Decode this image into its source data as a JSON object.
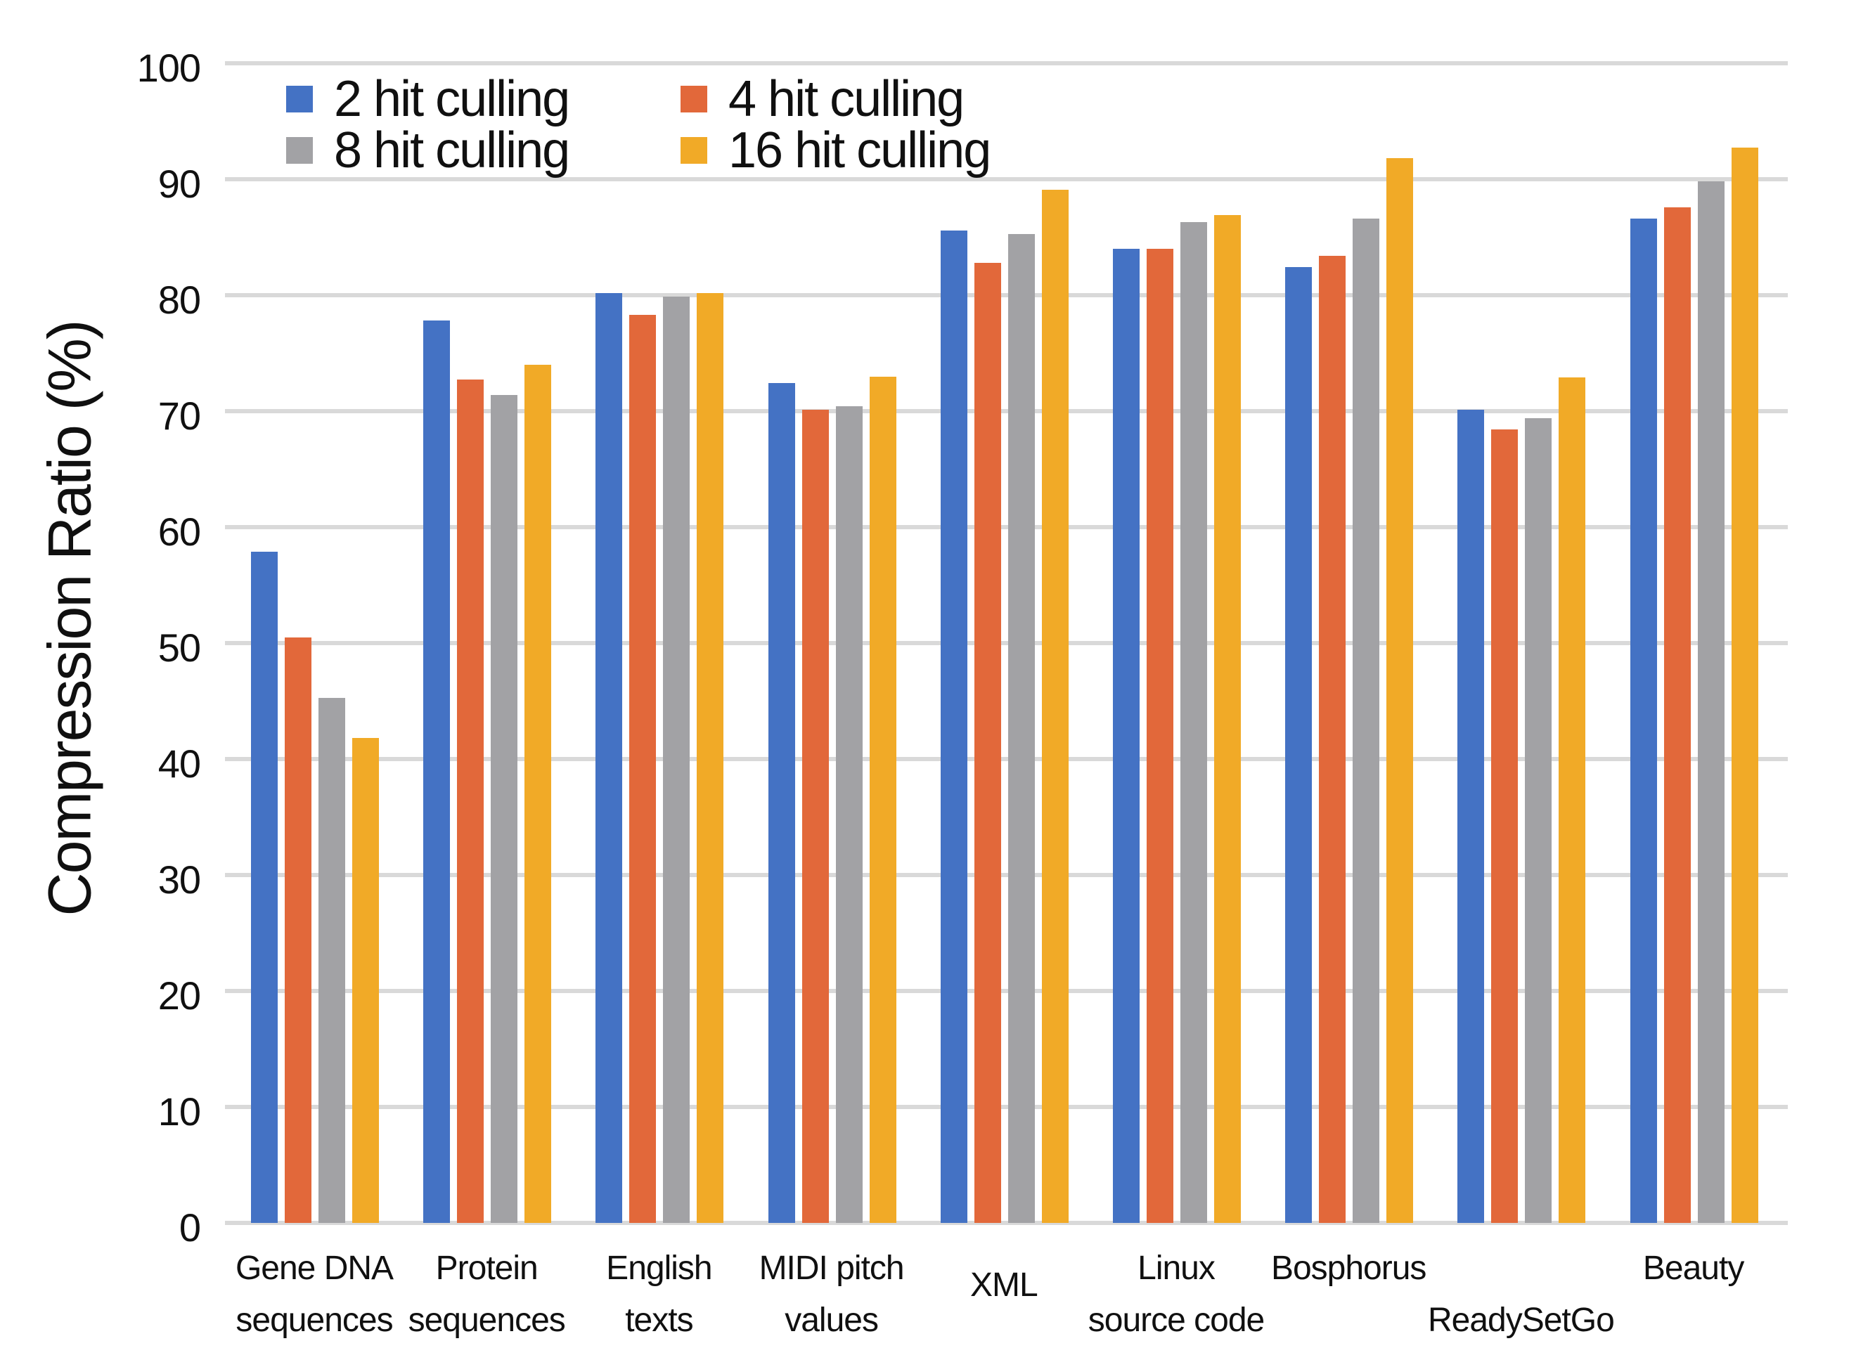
{
  "chart_data": {
    "type": "bar",
    "title": "",
    "ylabel": "Compression Ratio (%)",
    "xlabel": "",
    "ylim": [
      0,
      100
    ],
    "yticks": [
      0,
      10,
      20,
      30,
      40,
      50,
      60,
      70,
      80,
      90,
      100
    ],
    "grid": "horizontal",
    "grid_color": "#d9d9d9",
    "legend_position": "top-left-inside",
    "legend_layout": "2x2",
    "categories": [
      {
        "label": "Gene DNA sequences",
        "lines": [
          "Gene DNA",
          "sequences"
        ],
        "dy": 0
      },
      {
        "label": "Protein sequences",
        "lines": [
          "Protein",
          "sequences"
        ],
        "dy": 0
      },
      {
        "label": "English texts",
        "lines": [
          "English",
          "texts"
        ],
        "dy": 0
      },
      {
        "label": "MIDI pitch values",
        "lines": [
          "MIDI pitch",
          "values"
        ],
        "dy": 0
      },
      {
        "label": "XML",
        "lines": [
          "XML",
          ""
        ],
        "dy": 24
      },
      {
        "label": "Linux source code",
        "lines": [
          "Linux",
          "source code"
        ],
        "dy": 0
      },
      {
        "label": "Bosphorus",
        "lines": [
          "Bosphorus",
          ""
        ],
        "dy": 0
      },
      {
        "label": "ReadySetGo",
        "lines": [
          "",
          "ReadySetGo"
        ],
        "dy": 0
      },
      {
        "label": "Beauty",
        "lines": [
          "Beauty",
          ""
        ],
        "dy": 0
      }
    ],
    "series": [
      {
        "name": "2 hit culling",
        "color": "#4472c4",
        "values": [
          57.9,
          77.8,
          80.2,
          72.4,
          85.6,
          84.0,
          82.4,
          70.1,
          86.6
        ]
      },
      {
        "name": "4 hit culling",
        "color": "#e2683a",
        "values": [
          50.5,
          72.7,
          78.3,
          70.1,
          82.8,
          84.0,
          83.4,
          68.4,
          87.6
        ]
      },
      {
        "name": "8 hit culling",
        "color": "#a2a2a5",
        "values": [
          45.3,
          71.4,
          79.9,
          70.4,
          85.3,
          86.3,
          86.6,
          69.4,
          89.8
        ]
      },
      {
        "name": "16 hit culling",
        "color": "#f1aa27",
        "values": [
          41.8,
          74.0,
          80.2,
          73.0,
          89.1,
          86.9,
          91.8,
          72.9,
          92.7
        ]
      }
    ]
  }
}
